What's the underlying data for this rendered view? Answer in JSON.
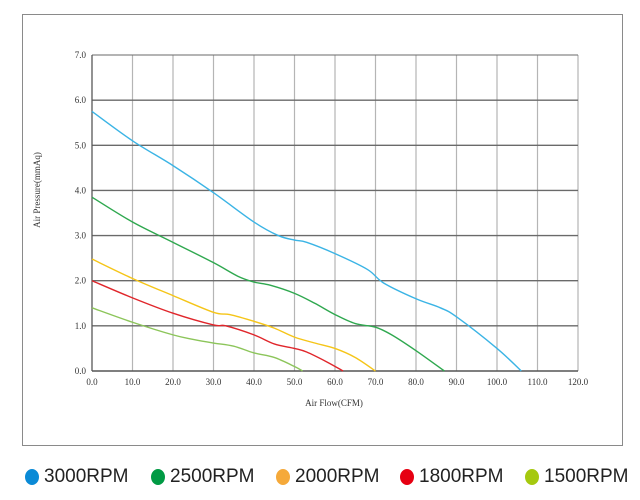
{
  "chart_data": {
    "type": "line",
    "title": "",
    "xlabel": "Air Flow(CFM)",
    "ylabel": "Air Pressure(mmAq)",
    "xlim": [
      0,
      120
    ],
    "ylim": [
      0,
      7
    ],
    "grid": true,
    "legend_position": "bottom",
    "x_ticks": [
      "0.0",
      "10.0",
      "20.0",
      "30.0",
      "40.0",
      "50.0",
      "60.0",
      "70.0",
      "80.0",
      "90.0",
      "100.0",
      "110.0",
      "120.0"
    ],
    "y_ticks": [
      "0.0",
      "1.0",
      "2.0",
      "3.0",
      "4.0",
      "5.0",
      "6.0",
      "7.0"
    ],
    "series": [
      {
        "name": "3000RPM",
        "color": "#3bb4e5",
        "legend_color": "#0a8ad6",
        "points": [
          [
            0,
            5.75
          ],
          [
            10,
            5.1
          ],
          [
            20,
            4.55
          ],
          [
            30,
            3.95
          ],
          [
            40,
            3.3
          ],
          [
            46,
            3.0
          ],
          [
            50,
            2.9
          ],
          [
            53,
            2.85
          ],
          [
            60,
            2.6
          ],
          [
            68,
            2.25
          ],
          [
            72,
            1.95
          ],
          [
            80,
            1.6
          ],
          [
            86,
            1.4
          ],
          [
            90,
            1.2
          ],
          [
            100,
            0.5
          ],
          [
            106,
            0
          ]
        ]
      },
      {
        "name": "2500RPM",
        "color": "#2fa84f",
        "legend_color": "#009a44",
        "points": [
          [
            0,
            3.85
          ],
          [
            10,
            3.3
          ],
          [
            20,
            2.85
          ],
          [
            30,
            2.4
          ],
          [
            36,
            2.1
          ],
          [
            40,
            1.97
          ],
          [
            44,
            1.9
          ],
          [
            50,
            1.72
          ],
          [
            55,
            1.5
          ],
          [
            60,
            1.25
          ],
          [
            65,
            1.05
          ],
          [
            70,
            0.97
          ],
          [
            74,
            0.8
          ],
          [
            80,
            0.45
          ],
          [
            87,
            0
          ]
        ]
      },
      {
        "name": "2000RPM",
        "color": "#f5c518",
        "legend_color": "#f5a93a",
        "points": [
          [
            0,
            2.48
          ],
          [
            10,
            2.05
          ],
          [
            20,
            1.67
          ],
          [
            30,
            1.3
          ],
          [
            34,
            1.25
          ],
          [
            40,
            1.1
          ],
          [
            45,
            0.95
          ],
          [
            50,
            0.75
          ],
          [
            55,
            0.62
          ],
          [
            60,
            0.5
          ],
          [
            65,
            0.3
          ],
          [
            70,
            0
          ]
        ]
      },
      {
        "name": "1800RPM",
        "color": "#e0262b",
        "legend_color": "#e60012",
        "points": [
          [
            0,
            2.0
          ],
          [
            10,
            1.62
          ],
          [
            20,
            1.28
          ],
          [
            30,
            1.02
          ],
          [
            33,
            1.0
          ],
          [
            40,
            0.8
          ],
          [
            45,
            0.6
          ],
          [
            50,
            0.5
          ],
          [
            53,
            0.42
          ],
          [
            58,
            0.2
          ],
          [
            62,
            0
          ]
        ]
      },
      {
        "name": "1500RPM",
        "color": "#8cc55a",
        "legend_color": "#a5c90f",
        "points": [
          [
            0,
            1.4
          ],
          [
            10,
            1.08
          ],
          [
            20,
            0.8
          ],
          [
            25,
            0.7
          ],
          [
            30,
            0.62
          ],
          [
            35,
            0.55
          ],
          [
            40,
            0.4
          ],
          [
            45,
            0.3
          ],
          [
            50,
            0.1
          ],
          [
            52,
            0
          ]
        ]
      }
    ]
  }
}
